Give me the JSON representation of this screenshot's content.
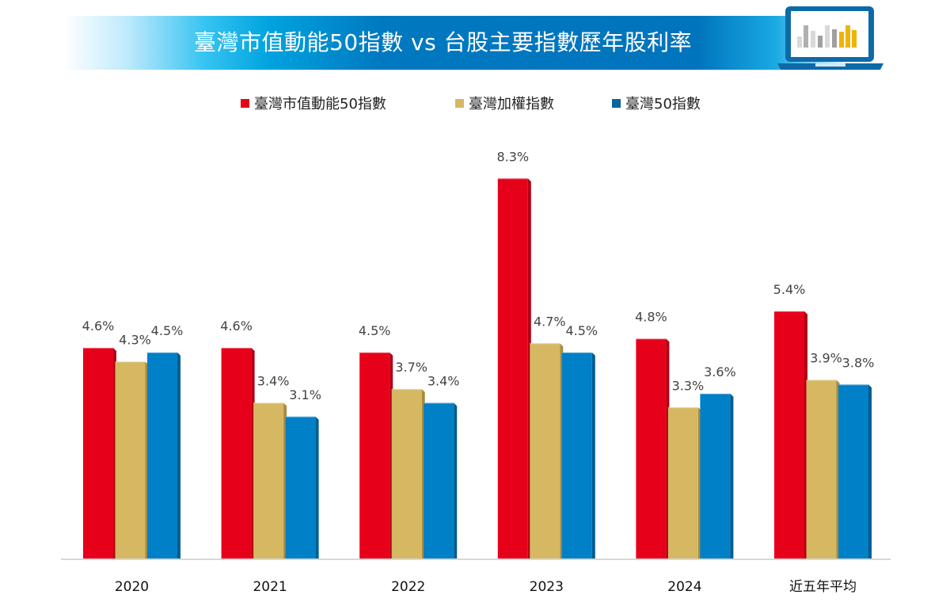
{
  "header": {
    "title": "臺灣市值動能50指數 vs 台股主要指數歷年股利率",
    "icon": "laptop-bar-chart-icon"
  },
  "colors": {
    "series": [
      "#e60019",
      "#d6b762",
      "#0080c6"
    ],
    "series_side": [
      "#b30014",
      "#a98b3c",
      "#005d8f"
    ],
    "title_banner": "#0079c1",
    "axis": "#cccccc"
  },
  "chart_data": {
    "type": "bar",
    "title": "臺灣市值動能50指數 vs 台股主要指數歷年股利率",
    "xlabel": "",
    "ylabel": "",
    "categories": [
      "2020",
      "2021",
      "2022",
      "2023",
      "2024",
      "近五年平均"
    ],
    "series": [
      {
        "name": "臺灣市值動能50指數",
        "values": [
          4.6,
          4.6,
          4.5,
          8.3,
          4.8,
          5.4
        ],
        "labels": [
          "4.6%",
          "4.6%",
          "4.5%",
          "8.3%",
          "4.8%",
          "5.4%"
        ]
      },
      {
        "name": "臺灣加權指數",
        "values": [
          4.3,
          3.4,
          3.7,
          4.7,
          3.3,
          3.9
        ],
        "labels": [
          "4.3%",
          "3.4%",
          "3.7%",
          "4.7%",
          "3.3%",
          "3.9%"
        ]
      },
      {
        "name": "臺灣50指數",
        "values": [
          4.5,
          3.1,
          3.4,
          4.5,
          3.6,
          3.8
        ],
        "labels": [
          "4.5%",
          "3.1%",
          "3.4%",
          "4.5%",
          "3.6%",
          "3.8%"
        ]
      }
    ],
    "value_format": "percent",
    "ylim": [
      0,
      8.3
    ],
    "grid": false,
    "legend_position": "top-center"
  }
}
